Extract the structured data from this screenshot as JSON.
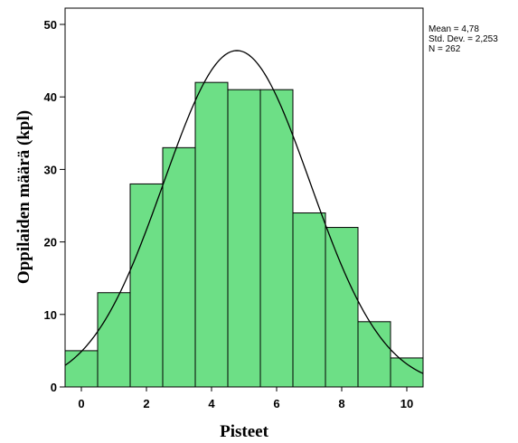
{
  "chart_data": {
    "type": "bar",
    "title": "",
    "xlabel": "Pisteet",
    "ylabel": "Oppilaiden määrä (kpl)",
    "bins": [
      {
        "x": 0,
        "value": 5
      },
      {
        "x": 1,
        "value": 13
      },
      {
        "x": 2,
        "value": 28
      },
      {
        "x": 3,
        "value": 33
      },
      {
        "x": 4,
        "value": 42
      },
      {
        "x": 5,
        "value": 41
      },
      {
        "x": 6,
        "value": 41
      },
      {
        "x": 7,
        "value": 24
      },
      {
        "x": 8,
        "value": 22
      },
      {
        "x": 9,
        "value": 9
      },
      {
        "x": 10,
        "value": 4
      }
    ],
    "xlim": [
      -0.5,
      10.5
    ],
    "ylim": [
      0,
      50
    ],
    "xticks": [
      0,
      2,
      4,
      6,
      8,
      10
    ],
    "yticks": [
      0,
      10,
      20,
      30,
      40,
      50
    ],
    "xtick_labels": [
      "0",
      "2",
      "4",
      "6",
      "8",
      "10"
    ],
    "ytick_labels": [
      "0",
      "10",
      "20",
      "30",
      "40",
      "50"
    ],
    "normal_curve": {
      "mean": 4.78,
      "std_dev": 2.253,
      "n": 262,
      "bin_width": 1
    },
    "bar_color": "#6ddf86",
    "grid": false,
    "stats": {
      "mean_label": "Mean = 4,78",
      "std_label": "Std. Dev. = 2,253",
      "n_label": "N = 262"
    }
  }
}
